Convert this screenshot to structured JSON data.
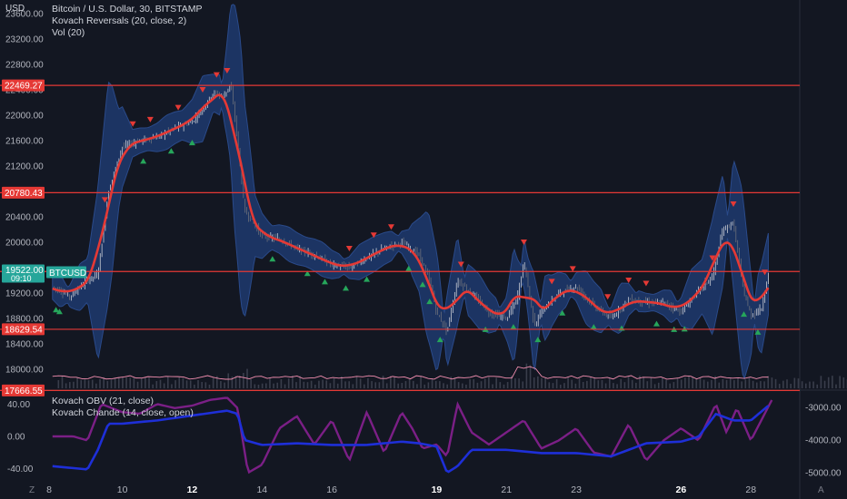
{
  "symbol": {
    "title": "Bitcoin / U.S. Dollar, 30, BITSTAMP",
    "currency": "USD",
    "ticker_badge": "BTCUSD",
    "last_price": "19522.00",
    "countdown": "09:10"
  },
  "legend": {
    "main": [
      "Kovach Reversals (20, close, 2)",
      "Vol (20)"
    ],
    "lower": [
      "Kovach OBV (21, close)",
      "Kovach Chande (14, close, open)"
    ]
  },
  "price_axis": {
    "ticks": [
      "23600.00",
      "23200.00",
      "22800.00",
      "22400.00",
      "22000.00",
      "21600.00",
      "21200.00",
      "20800.00",
      "20400.00",
      "20000.00",
      "19600.00",
      "19200.00",
      "18800.00",
      "18400.00",
      "18000.00"
    ],
    "level_labels": [
      "22469.27",
      "20780.43",
      "19539.67",
      "18629.54",
      "17666.55"
    ]
  },
  "lower_axis_left": [
    "40.00",
    "0.00",
    "-40.00"
  ],
  "lower_axis_right": [
    "-3000.00",
    "-4000.00",
    "-5000.00"
  ],
  "time_axis": [
    {
      "label": "8",
      "bold": false
    },
    {
      "label": "10",
      "bold": false
    },
    {
      "label": "12",
      "bold": true
    },
    {
      "label": "14",
      "bold": false
    },
    {
      "label": "16",
      "bold": false
    },
    {
      "label": "19",
      "bold": true
    },
    {
      "label": "21",
      "bold": false
    },
    {
      "label": "23",
      "bold": false
    },
    {
      "label": "26",
      "bold": true
    },
    {
      "label": "28",
      "bold": false
    }
  ],
  "corner_left": "Z",
  "corner_right": "A",
  "colors": {
    "background": "#131722",
    "level_line": "#e53935",
    "level_label_bg": "#e53935",
    "badge": "#26a69a",
    "band_fill": "#1e3a6e",
    "band_edge": "#2a4a8a",
    "midline": "#e53935",
    "obv": "#1e2fd8",
    "chande": "#7b1f86",
    "up_marker": "#26a65b",
    "down_marker": "#e53935"
  },
  "chart_data": {
    "type": "line",
    "price_series": {
      "name": "Bitcoin / U.S. Dollar",
      "x_days": [
        8,
        8.5,
        9,
        9.3,
        9.6,
        10,
        10.5,
        11,
        11.5,
        12,
        12.3,
        12.6,
        12.9,
        13.1,
        13.3,
        13.5,
        14,
        14.5,
        15,
        15.5,
        16,
        16.5,
        17,
        17.5,
        18,
        18.5,
        18.8,
        19,
        19.3,
        19.6,
        20,
        20.5,
        21,
        21.3,
        21.5,
        21.8,
        22,
        22.5,
        23,
        23.5,
        24,
        24.5,
        25,
        25.5,
        26,
        26.3,
        26.6,
        26.9,
        27.2,
        27.5,
        27.8,
        28,
        28.3,
        28.5
      ],
      "close": [
        19300,
        19150,
        19400,
        19500,
        20800,
        21500,
        21600,
        21650,
        21800,
        21900,
        22100,
        22350,
        22300,
        22500,
        21600,
        20500,
        20100,
        20050,
        19900,
        19800,
        19650,
        19600,
        19750,
        19900,
        20000,
        19800,
        19400,
        18900,
        18600,
        19400,
        19200,
        18900,
        18800,
        19100,
        19700,
        18700,
        18900,
        19200,
        19300,
        19000,
        18800,
        19100,
        19050,
        19050,
        18900,
        19100,
        19300,
        19450,
        20200,
        20300,
        19200,
        18850,
        18950,
        19500
      ]
    },
    "levels": [
      22469.27,
      20780.43,
      19539.67,
      18629.54,
      17666.55
    ],
    "obv_series": {
      "name": "Kovach OBV",
      "x_days": [
        8,
        8.5,
        9,
        9.3,
        9.6,
        10,
        11,
        12,
        13,
        13.3,
        13.5,
        14,
        15,
        16,
        17,
        18,
        18.5,
        19,
        19.3,
        19.6,
        20,
        21,
        22,
        23,
        24,
        25,
        26,
        26.5,
        27,
        27.5,
        28,
        28.5
      ],
      "values": [
        -4800,
        -4850,
        -4900,
        -4300,
        -3500,
        -3500,
        -3400,
        -3250,
        -3100,
        -3200,
        -4000,
        -4150,
        -4100,
        -4150,
        -4150,
        -4050,
        -4100,
        -4200,
        -5000,
        -4800,
        -4300,
        -4300,
        -4400,
        -4400,
        -4500,
        -4100,
        -4050,
        -3900,
        -3200,
        -3400,
        -3400,
        -2950
      ]
    },
    "chande_series": {
      "name": "Kovach Chande",
      "x_days": [
        8,
        8.6,
        9,
        9.4,
        10,
        10.5,
        11,
        11.5,
        12,
        12.5,
        13,
        13.3,
        13.6,
        14,
        14.5,
        15,
        15.5,
        16,
        16.5,
        17,
        17.5,
        18,
        18.3,
        18.6,
        19,
        19.3,
        19.6,
        20,
        20.5,
        21,
        21.5,
        22,
        22.5,
        23,
        23.5,
        24,
        24.5,
        25,
        25.5,
        26,
        26.5,
        27,
        27.3,
        27.6,
        28,
        28.3,
        28.6
      ],
      "values": [
        0,
        0,
        -5,
        40,
        30,
        28,
        40,
        35,
        38,
        45,
        48,
        35,
        -45,
        -35,
        10,
        25,
        -10,
        20,
        -30,
        30,
        -20,
        30,
        10,
        -15,
        -10,
        -25,
        40,
        5,
        -10,
        5,
        20,
        -15,
        -5,
        10,
        -20,
        -25,
        15,
        -30,
        -5,
        10,
        -5,
        40,
        5,
        35,
        -5,
        20,
        45
      ]
    },
    "xlabel": "",
    "ylabel": "",
    "price_ylim": [
      17700,
      23700
    ],
    "lower_ylim": [
      -55,
      55
    ],
    "grid": false
  }
}
